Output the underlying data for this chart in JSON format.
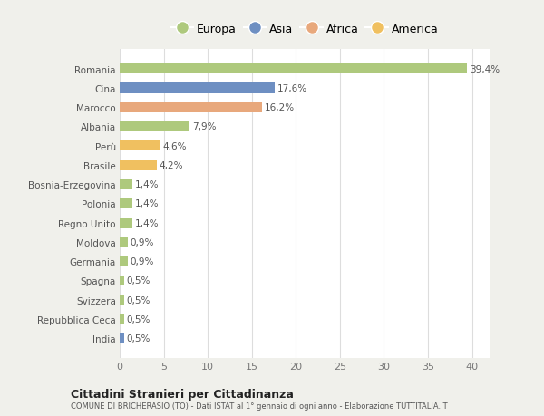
{
  "categories": [
    "Romania",
    "Cina",
    "Marocco",
    "Albania",
    "Perù",
    "Brasile",
    "Bosnia-Erzegovina",
    "Polonia",
    "Regno Unito",
    "Moldova",
    "Germania",
    "Spagna",
    "Svizzera",
    "Repubblica Ceca",
    "India"
  ],
  "values": [
    39.4,
    17.6,
    16.2,
    7.9,
    4.6,
    4.2,
    1.4,
    1.4,
    1.4,
    0.9,
    0.9,
    0.5,
    0.5,
    0.5,
    0.5
  ],
  "labels": [
    "39,4%",
    "17,6%",
    "16,2%",
    "7,9%",
    "4,6%",
    "4,2%",
    "1,4%",
    "1,4%",
    "1,4%",
    "0,9%",
    "0,9%",
    "0,5%",
    "0,5%",
    "0,5%",
    "0,5%"
  ],
  "colors": [
    "#aec97d",
    "#6e8fc2",
    "#e8a87c",
    "#aec97d",
    "#f0c060",
    "#f0c060",
    "#aec97d",
    "#aec97d",
    "#aec97d",
    "#aec97d",
    "#aec97d",
    "#aec97d",
    "#aec97d",
    "#aec97d",
    "#6e8fc2"
  ],
  "legend_labels": [
    "Europa",
    "Asia",
    "Africa",
    "America"
  ],
  "legend_colors": [
    "#aec97d",
    "#6e8fc2",
    "#e8a87c",
    "#f0c060"
  ],
  "title": "Cittadini Stranieri per Cittadinanza",
  "subtitle": "COMUNE DI BRICHERASIO (TO) - Dati ISTAT al 1° gennaio di ogni anno - Elaborazione TUTTITALIA.IT",
  "xlim": [
    0,
    42
  ],
  "xticks": [
    0,
    5,
    10,
    15,
    20,
    25,
    30,
    35,
    40
  ],
  "bg_color": "#f0f0eb",
  "bar_bg_color": "#ffffff",
  "grid_color": "#dddddd"
}
